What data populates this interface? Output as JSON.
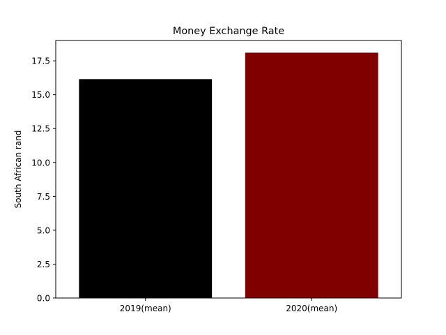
{
  "chart_data": {
    "type": "bar",
    "title": "Money Exchange Rate",
    "xlabel": "",
    "ylabel": "South African rand",
    "categories": [
      "2019(mean)",
      "2020(mean)"
    ],
    "values": [
      16.15,
      18.1
    ],
    "bar_colors": [
      "#000000",
      "#800000"
    ],
    "ylim": [
      0,
      19
    ],
    "yticks": [
      0.0,
      2.5,
      5.0,
      7.5,
      10.0,
      12.5,
      15.0,
      17.5
    ],
    "ytick_labels": [
      "0.0",
      "2.5",
      "5.0",
      "7.5",
      "10.0",
      "12.5",
      "15.0",
      "17.5"
    ],
    "grid": false,
    "legend": "none"
  }
}
